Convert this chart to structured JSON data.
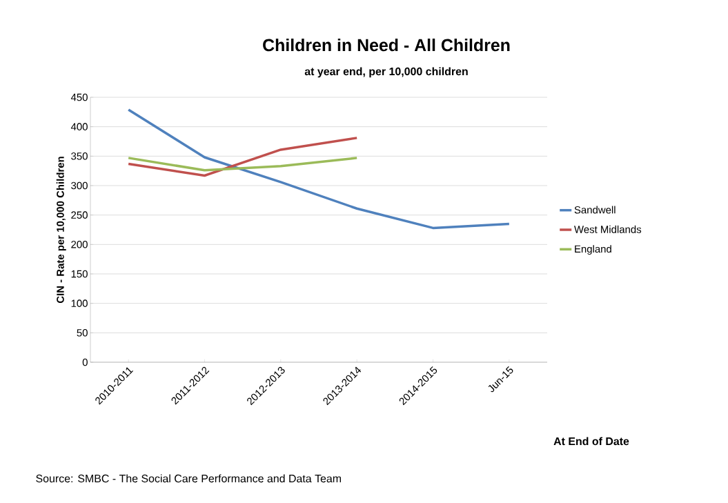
{
  "chart_data": {
    "type": "line",
    "title": "Children in Need - All Children",
    "subtitle": "at year end, per 10,000 children",
    "xlabel": "At End of Date",
    "ylabel": "CIN - Rate per 10,000 Children",
    "categories": [
      "2010-2011",
      "2011-2012",
      "2012-2013",
      "2013-2014",
      "2014-2015",
      "Jun-15"
    ],
    "series": [
      {
        "name": "Sandwell",
        "color": "#4f81bd",
        "values": [
          429,
          348,
          306,
          261,
          228,
          235
        ]
      },
      {
        "name": "West Midlands",
        "color": "#c0504d",
        "values": [
          337,
          317,
          361,
          381,
          null,
          null
        ]
      },
      {
        "name": "England",
        "color": "#9bbb59",
        "values": [
          347,
          326,
          333,
          347,
          null,
          null
        ]
      }
    ],
    "ylim": [
      0,
      450
    ],
    "yticks": [
      0,
      50,
      100,
      150,
      200,
      250,
      300,
      350,
      400,
      450
    ],
    "grid": "y",
    "legend": "right",
    "marker": "none",
    "line_style": "solid",
    "annotations": [
      "Source: SMBC - The Social Care Performance and Data Team"
    ]
  }
}
